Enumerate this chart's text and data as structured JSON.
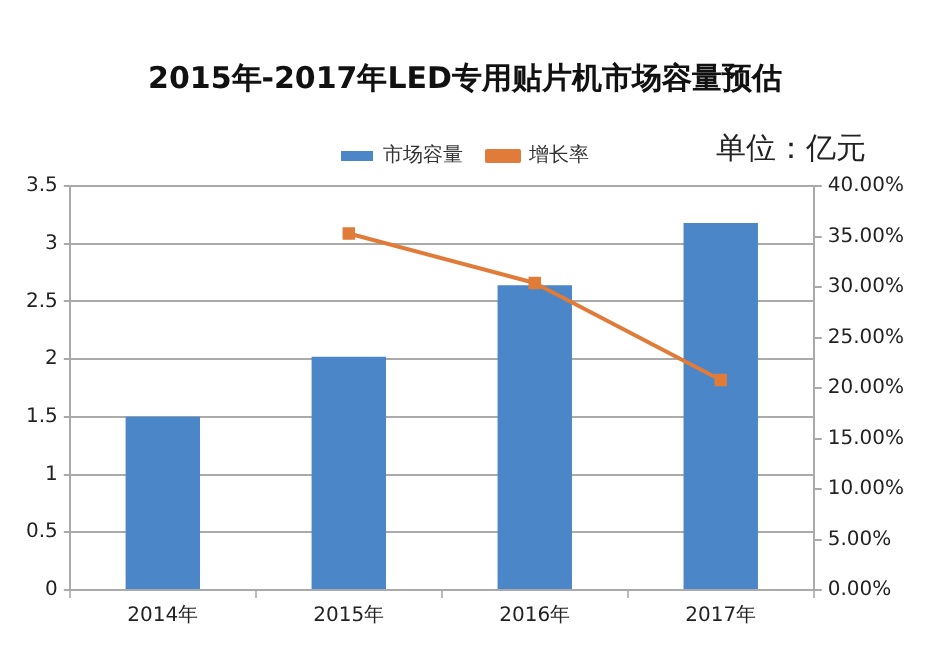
{
  "chart_data": {
    "type": "bar",
    "title": "2015年-2017年LED专用贴片机市场容量预估",
    "categories": [
      "2014年",
      "2015年",
      "2016年",
      "2017年"
    ],
    "series": [
      {
        "name": "市场容量",
        "color": "#4a86c8",
        "values": [
          1.5,
          2.02,
          2.64,
          3.18
        ]
      },
      {
        "name": "增长率",
        "type": "line",
        "axis": "y2",
        "marker": "square",
        "color": "#e07b39",
        "values": [
          null,
          35.3,
          30.4,
          20.8
        ]
      }
    ],
    "ylim": [
      0,
      3.5
    ],
    "yticks": [
      0,
      0.5,
      1,
      1.5,
      2,
      2.5,
      3,
      3.5
    ],
    "y2lim": [
      0,
      40
    ],
    "y2ticks": [
      {
        "value": 0,
        "label": "0.00%"
      },
      {
        "value": 5,
        "label": "5.00%"
      },
      {
        "value": 10,
        "label": "10.00%"
      },
      {
        "value": 15,
        "label": "15.00%"
      },
      {
        "value": 20,
        "label": "20.00%"
      },
      {
        "value": 25,
        "label": "25.00%"
      },
      {
        "value": 30,
        "label": "30.00%"
      },
      {
        "value": 35,
        "label": "35.00%"
      },
      {
        "value": 40,
        "label": "40.00%"
      }
    ],
    "grid": "y",
    "legend": "top",
    "annotations": [
      "单位：亿元"
    ]
  }
}
